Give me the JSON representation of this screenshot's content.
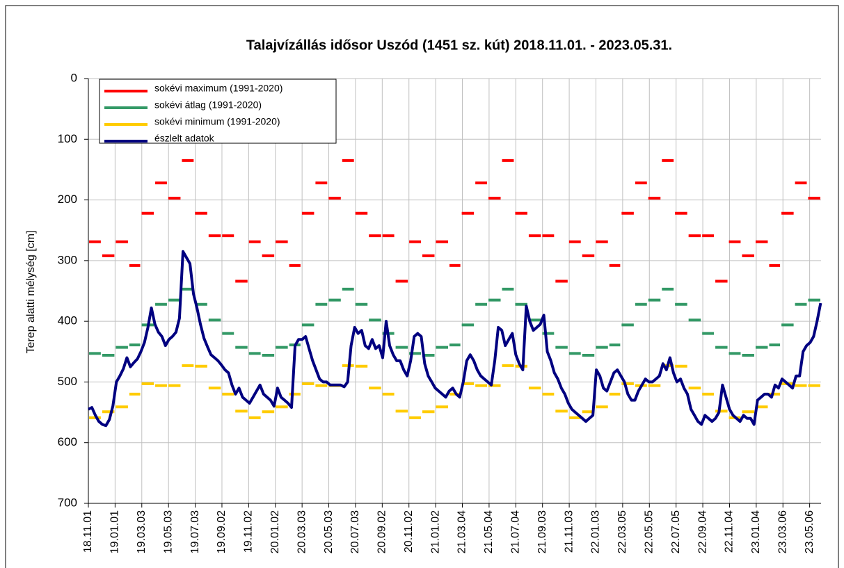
{
  "chart_data": {
    "type": "line",
    "title": "Talajvízállás idősor Uszód (1451 sz. kút) 2018.11.01. - 2023.05.31.",
    "ylabel": "Terep alatti mélység [cm]",
    "invert_y": true,
    "grid": true,
    "legend": "upper left",
    "xlim": [
      0,
      1673
    ],
    "xticks": [
      {
        "value": 0,
        "label": "18.11.01"
      },
      {
        "value": 61,
        "label": "19.01.01"
      },
      {
        "value": 122,
        "label": "19.03.03"
      },
      {
        "value": 183,
        "label": "19.05.03"
      },
      {
        "value": 244,
        "label": "19.07.03"
      },
      {
        "value": 305,
        "label": "19.09.02"
      },
      {
        "value": 366,
        "label": "19.11.02"
      },
      {
        "value": 427,
        "label": "20.01.02"
      },
      {
        "value": 488,
        "label": "20.03.03"
      },
      {
        "value": 549,
        "label": "20.05.03"
      },
      {
        "value": 610,
        "label": "20.07.03"
      },
      {
        "value": 671,
        "label": "20.09.02"
      },
      {
        "value": 732,
        "label": "20.11.02"
      },
      {
        "value": 793,
        "label": "21.01.02"
      },
      {
        "value": 854,
        "label": "21.03.04"
      },
      {
        "value": 915,
        "label": "21.05.04"
      },
      {
        "value": 976,
        "label": "21.07.04"
      },
      {
        "value": 1037,
        "label": "21.09.03"
      },
      {
        "value": 1098,
        "label": "21.11.03"
      },
      {
        "value": 1159,
        "label": "22.01.03"
      },
      {
        "value": 1220,
        "label": "22.03.05"
      },
      {
        "value": 1281,
        "label": "22.05.05"
      },
      {
        "value": 1342,
        "label": "22.07.05"
      },
      {
        "value": 1403,
        "label": "22.09.04"
      },
      {
        "value": 1464,
        "label": "22.11.04"
      },
      {
        "value": 1525,
        "label": "23.01.04"
      },
      {
        "value": 1586,
        "label": "23.03.06"
      },
      {
        "value": 1647,
        "label": "23.05.06"
      }
    ],
    "ylim": [
      0,
      700
    ],
    "yticks": [
      0,
      100,
      200,
      300,
      400,
      500,
      600,
      700
    ],
    "series": [
      {
        "name": "sokévi  maximum (1991-2020)",
        "color": "#ff0000",
        "style": "step",
        "x": [
          0,
          30,
          61,
          92,
          120,
          151,
          181,
          212,
          242,
          273,
          304,
          334,
          365,
          395,
          426,
          457,
          486,
          517,
          547,
          578,
          608,
          639,
          670,
          700,
          731,
          761,
          792,
          823,
          851,
          882,
          912,
          943,
          973,
          1004,
          1035,
          1065,
          1096,
          1126,
          1157,
          1188,
          1216,
          1247,
          1277,
          1308,
          1338,
          1369,
          1400,
          1430,
          1461,
          1491,
          1522,
          1553,
          1581,
          1612,
          1642
        ],
        "values": [
          269,
          292,
          269,
          308,
          222,
          172,
          197,
          135,
          222,
          259,
          259,
          334,
          269,
          292,
          269,
          308,
          222,
          172,
          197,
          135,
          222,
          259,
          259,
          334,
          269,
          292,
          269,
          308,
          222,
          172,
          197,
          135,
          222,
          259,
          259,
          334,
          269,
          292,
          269,
          308,
          222,
          172,
          197,
          135,
          222,
          259,
          259,
          334,
          269,
          292,
          269,
          308,
          222,
          172,
          197
        ]
      },
      {
        "name": "sokévi átlag (1991-2020)",
        "color": "#339966",
        "style": "step",
        "x": [
          0,
          30,
          61,
          92,
          120,
          151,
          181,
          212,
          242,
          273,
          304,
          334,
          365,
          395,
          426,
          457,
          486,
          517,
          547,
          578,
          608,
          639,
          670,
          700,
          731,
          761,
          792,
          823,
          851,
          882,
          912,
          943,
          973,
          1004,
          1035,
          1065,
          1096,
          1126,
          1157,
          1188,
          1216,
          1247,
          1277,
          1308,
          1338,
          1369,
          1400,
          1430,
          1461,
          1491,
          1522,
          1553,
          1581,
          1612,
          1642
        ],
        "values": [
          453,
          456,
          443,
          439,
          406,
          372,
          365,
          347,
          372,
          398,
          420,
          443,
          453,
          456,
          443,
          439,
          406,
          372,
          365,
          347,
          372,
          398,
          420,
          443,
          453,
          456,
          443,
          439,
          406,
          372,
          365,
          347,
          372,
          398,
          420,
          443,
          453,
          456,
          443,
          439,
          406,
          372,
          365,
          347,
          372,
          398,
          420,
          443,
          453,
          456,
          443,
          439,
          406,
          372,
          365
        ]
      },
      {
        "name": "sokévi minimum (1991-2020)",
        "color": "#ffcc00",
        "style": "step",
        "x": [
          0,
          30,
          61,
          92,
          120,
          151,
          181,
          212,
          242,
          273,
          304,
          334,
          365,
          395,
          426,
          457,
          486,
          517,
          547,
          578,
          608,
          639,
          670,
          700,
          731,
          761,
          792,
          823,
          851,
          882,
          912,
          943,
          973,
          1004,
          1035,
          1065,
          1096,
          1126,
          1157,
          1188,
          1216,
          1247,
          1277,
          1308,
          1338,
          1369,
          1400,
          1430,
          1461,
          1491,
          1522,
          1553,
          1581,
          1612,
          1642
        ],
        "values": [
          559,
          549,
          541,
          520,
          503,
          506,
          506,
          473,
          474,
          510,
          520,
          548,
          559,
          549,
          541,
          520,
          503,
          506,
          506,
          473,
          474,
          510,
          520,
          548,
          559,
          549,
          541,
          520,
          503,
          506,
          506,
          473,
          474,
          510,
          520,
          548,
          559,
          549,
          541,
          520,
          503,
          506,
          506,
          473,
          474,
          510,
          520,
          548,
          559,
          549,
          541,
          520,
          503,
          506,
          506
        ]
      },
      {
        "name": "észlelt adatok",
        "color": "#000080",
        "style": "line",
        "x": [
          0,
          8,
          16,
          24,
          32,
          40,
          48,
          56,
          64,
          72,
          80,
          88,
          96,
          104,
          112,
          120,
          128,
          136,
          144,
          152,
          160,
          168,
          176,
          184,
          192,
          200,
          208,
          216,
          224,
          232,
          240,
          248,
          256,
          264,
          272,
          280,
          288,
          296,
          304,
          312,
          320,
          328,
          336,
          344,
          352,
          360,
          368,
          376,
          384,
          392,
          400,
          408,
          416,
          424,
          432,
          440,
          448,
          456,
          464,
          472,
          480,
          488,
          496,
          504,
          512,
          520,
          528,
          536,
          544,
          552,
          560,
          568,
          576,
          584,
          592,
          600,
          608,
          616,
          624,
          632,
          640,
          648,
          656,
          664,
          672,
          680,
          688,
          696,
          704,
          712,
          720,
          728,
          736,
          744,
          752,
          760,
          768,
          776,
          784,
          792,
          800,
          808,
          816,
          824,
          832,
          840,
          848,
          856,
          864,
          872,
          880,
          888,
          896,
          904,
          912,
          920,
          928,
          936,
          944,
          952,
          960,
          968,
          976,
          984,
          992,
          1000,
          1008,
          1016,
          1024,
          1032,
          1040,
          1048,
          1056,
          1064,
          1072,
          1080,
          1088,
          1096,
          1104,
          1112,
          1120,
          1128,
          1136,
          1144,
          1152,
          1160,
          1168,
          1176,
          1184,
          1192,
          1200,
          1208,
          1216,
          1224,
          1232,
          1240,
          1248,
          1256,
          1264,
          1272,
          1280,
          1288,
          1296,
          1304,
          1312,
          1320,
          1328,
          1336,
          1344,
          1352,
          1360,
          1368,
          1376,
          1384,
          1392,
          1400,
          1408,
          1416,
          1424,
          1432,
          1440,
          1448,
          1456,
          1464,
          1472,
          1480,
          1488,
          1496,
          1504,
          1512,
          1520,
          1528,
          1536,
          1544,
          1552,
          1560,
          1568,
          1576,
          1584,
          1592,
          1600,
          1608,
          1616,
          1624,
          1632,
          1640,
          1648,
          1656,
          1664,
          1672
        ],
        "values": [
          545,
          542,
          555,
          565,
          570,
          572,
          562,
          540,
          500,
          490,
          478,
          460,
          475,
          468,
          462,
          450,
          435,
          410,
          378,
          405,
          418,
          425,
          440,
          430,
          425,
          418,
          395,
          285,
          295,
          305,
          355,
          378,
          405,
          428,
          442,
          455,
          460,
          465,
          472,
          480,
          485,
          505,
          520,
          510,
          525,
          530,
          535,
          525,
          515,
          505,
          520,
          525,
          530,
          540,
          510,
          525,
          530,
          535,
          542,
          440,
          430,
          430,
          425,
          445,
          465,
          480,
          495,
          500,
          500,
          505,
          505,
          505,
          505,
          508,
          500,
          440,
          410,
          420,
          415,
          440,
          445,
          430,
          445,
          440,
          460,
          400,
          440,
          455,
          465,
          465,
          480,
          490,
          465,
          425,
          420,
          425,
          470,
          490,
          500,
          510,
          515,
          520,
          525,
          515,
          510,
          520,
          525,
          500,
          465,
          455,
          465,
          480,
          490,
          495,
          500,
          505,
          465,
          410,
          415,
          440,
          430,
          420,
          455,
          470,
          480,
          375,
          400,
          415,
          410,
          405,
          390,
          450,
          465,
          485,
          495,
          510,
          520,
          535,
          545,
          550,
          555,
          560,
          565,
          560,
          555,
          480,
          490,
          510,
          515,
          500,
          485,
          480,
          490,
          500,
          520,
          530,
          530,
          515,
          505,
          495,
          500,
          500,
          495,
          490,
          470,
          480,
          460,
          485,
          500,
          495,
          510,
          520,
          545,
          555,
          565,
          570,
          555,
          560,
          565,
          560,
          550,
          505,
          525,
          545,
          555,
          560,
          565,
          555,
          560,
          560,
          570,
          530,
          525,
          520,
          520,
          525,
          505,
          510,
          495,
          500,
          505,
          510,
          490,
          490,
          450,
          440,
          435,
          425,
          400,
          370
        ]
      }
    ]
  }
}
